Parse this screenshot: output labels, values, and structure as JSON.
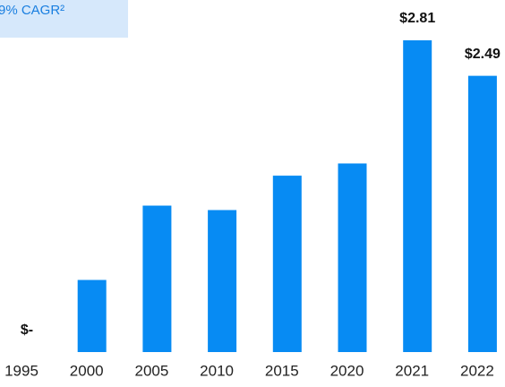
{
  "chart_data": {
    "type": "bar",
    "annotation": "9% CAGR²",
    "categories": [
      "1995",
      "2000",
      "2005",
      "2010",
      "2015",
      "2020",
      "2021",
      "2022"
    ],
    "values": [
      0,
      0.65,
      1.32,
      1.28,
      1.59,
      1.7,
      2.81,
      2.49
    ],
    "value_labels": [
      "$-",
      null,
      null,
      null,
      null,
      null,
      "$2.81",
      "$2.49"
    ],
    "color": "#078bf3"
  }
}
